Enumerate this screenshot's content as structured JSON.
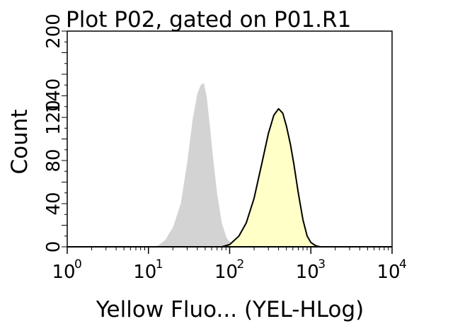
{
  "chart_data": {
    "type": "area",
    "title": "Plot P02, gated on P01.R1",
    "xlabel": "Yellow Fluo... (YEL-HLog)",
    "ylabel": "Count",
    "x_scale": "log",
    "xlim": [
      1,
      10000
    ],
    "ylim": [
      0,
      200
    ],
    "x_ticks": [
      {
        "value": 1,
        "base": "10",
        "exp": "0"
      },
      {
        "value": 10,
        "base": "10",
        "exp": "1"
      },
      {
        "value": 100,
        "base": "10",
        "exp": "2"
      },
      {
        "value": 1000,
        "base": "10",
        "exp": "3"
      },
      {
        "value": 10000,
        "base": "10",
        "exp": "4"
      }
    ],
    "y_ticks": [
      {
        "value": 0,
        "label": "0"
      },
      {
        "value": 40,
        "label": "40"
      },
      {
        "value": 80,
        "label": "80"
      },
      {
        "value": 120,
        "label": "120"
      },
      {
        "value": 140,
        "label": "140"
      },
      {
        "value": 200,
        "label": "200"
      }
    ],
    "grid": false,
    "series": [
      {
        "color": "#d3d3d3",
        "outline": "none",
        "x": [
          10,
          13,
          16,
          20,
          25,
          30,
          35,
          40,
          44,
          48,
          52,
          56,
          62,
          70,
          80,
          92,
          105,
          120,
          140,
          160
        ],
        "y": [
          0,
          1,
          6,
          18,
          40,
          78,
          118,
          142,
          150,
          152,
          140,
          118,
          85,
          50,
          22,
          8,
          3,
          1,
          0,
          0
        ]
      },
      {
        "color": "#ffffc4",
        "outline": "#000000",
        "x": [
          80,
          100,
          130,
          160,
          200,
          250,
          300,
          350,
          400,
          450,
          500,
          560,
          620,
          700,
          800,
          900,
          1000,
          1150,
          1300
        ],
        "y": [
          0,
          2,
          10,
          22,
          45,
          78,
          105,
          122,
          128,
          124,
          112,
          95,
          76,
          50,
          25,
          10,
          4,
          1,
          0
        ]
      }
    ]
  }
}
